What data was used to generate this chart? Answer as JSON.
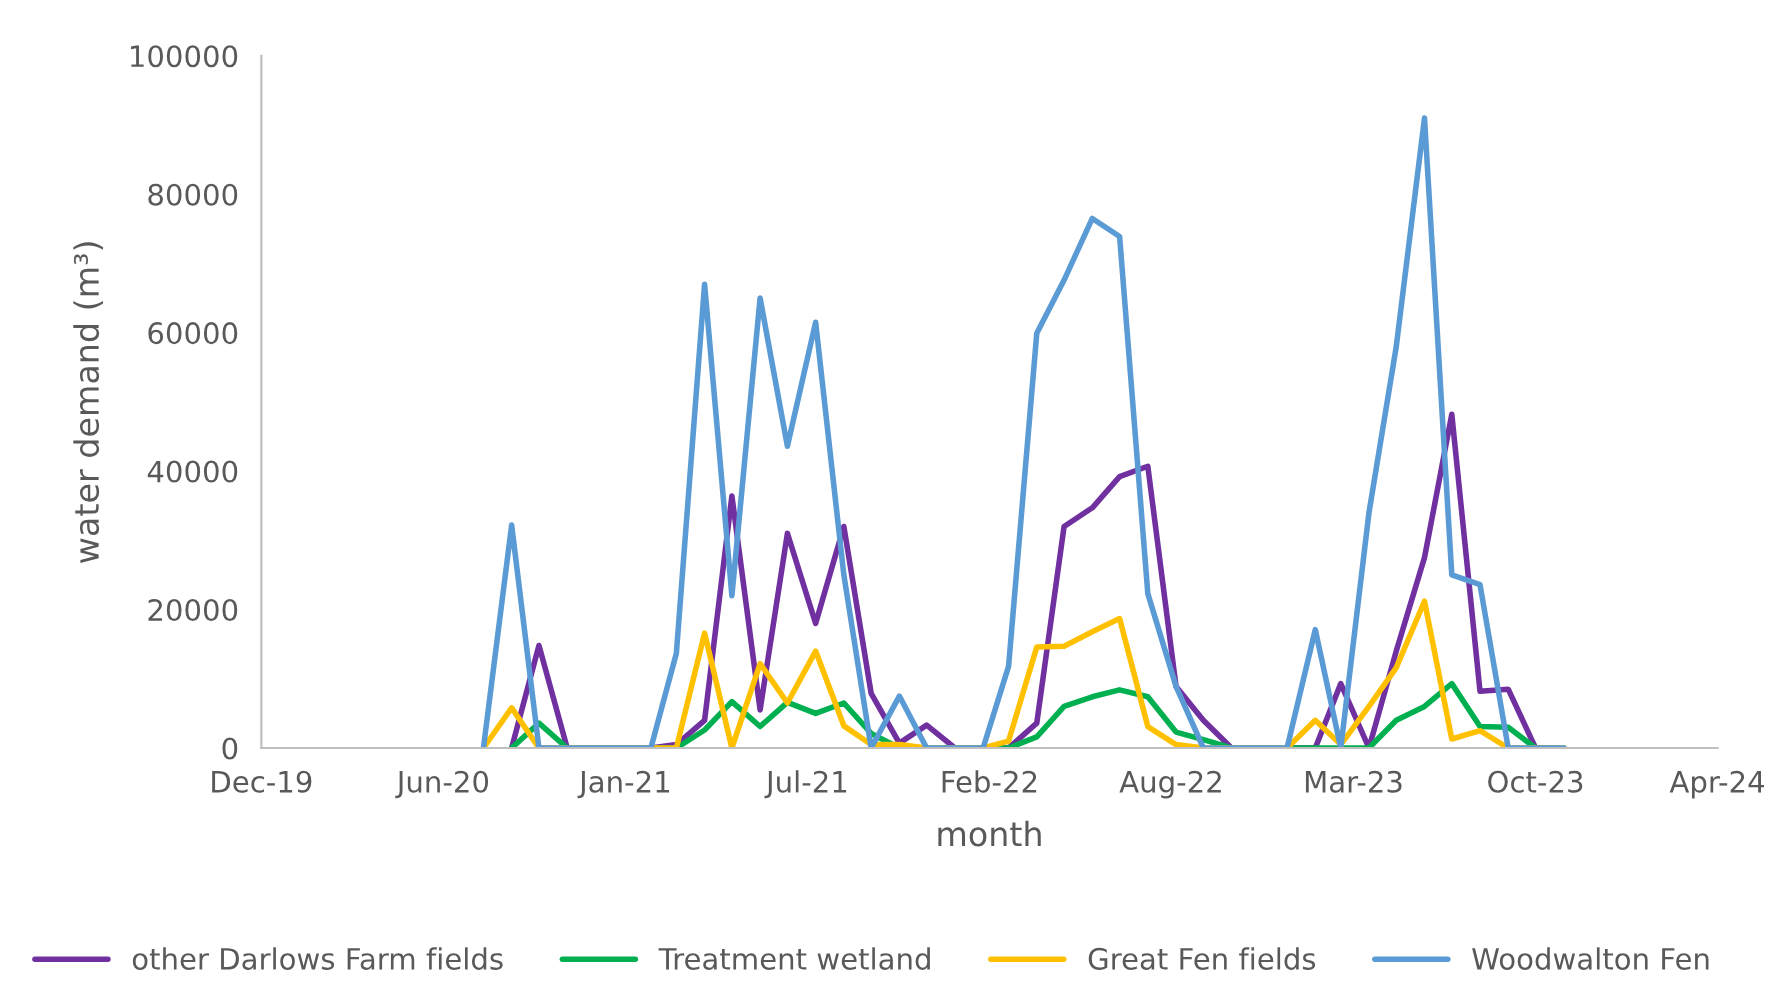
{
  "chart_data": {
    "type": "line",
    "xlabel": "month",
    "ylabel": "water demand (m³)",
    "x": [
      "2020-08",
      "2020-09",
      "2020-10",
      "2020-11",
      "2020-12",
      "2021-01",
      "2021-02",
      "2021-03",
      "2021-04",
      "2021-05",
      "2021-06",
      "2021-07",
      "2021-08",
      "2021-09",
      "2021-10",
      "2021-11",
      "2021-12",
      "2022-01",
      "2022-02",
      "2022-03",
      "2022-04",
      "2022-05",
      "2022-06",
      "2022-07",
      "2022-08",
      "2022-09",
      "2022-10",
      "2022-11",
      "2022-12",
      "2023-01",
      "2023-02",
      "2023-03",
      "2023-04",
      "2023-05",
      "2023-06",
      "2023-07",
      "2023-08",
      "2023-09",
      "2023-10",
      "2023-11"
    ],
    "series": [
      {
        "name": "other Darlows Farm fields",
        "color": "#7030a0",
        "values": [
          null,
          0,
          14800,
          0,
          0,
          0,
          0,
          500,
          4000,
          36400,
          5500,
          31000,
          18000,
          32000,
          7900,
          700,
          3300,
          0,
          0,
          0,
          3600,
          32000,
          34700,
          39200,
          40700,
          8900,
          4000,
          0,
          0,
          0,
          0,
          9300,
          0,
          14000,
          27500,
          48200,
          8200,
          8500,
          0,
          0
        ]
      },
      {
        "name": "Treatment wetland",
        "color": "#00b050",
        "values": [
          null,
          0,
          3600,
          0,
          0,
          0,
          0,
          0,
          2600,
          6700,
          3100,
          6600,
          5000,
          6500,
          2100,
          0,
          0,
          0,
          0,
          0,
          1600,
          6000,
          7400,
          8400,
          7400,
          2300,
          1200,
          0,
          0,
          0,
          0,
          0,
          0,
          4000,
          6000,
          9300,
          3100,
          3000,
          0,
          0
        ]
      },
      {
        "name": "Great Fen fields",
        "color": "#ffc000",
        "values": [
          0,
          5800,
          0,
          0,
          0,
          0,
          0,
          0,
          16600,
          0,
          12200,
          6500,
          14000,
          3200,
          500,
          500,
          0,
          0,
          0,
          1000,
          14600,
          14700,
          16800,
          18700,
          3100,
          500,
          0,
          0,
          0,
          0,
          4000,
          500,
          6000,
          11600,
          21200,
          1300,
          2500,
          0,
          0,
          0
        ]
      },
      {
        "name": "Woodwalton Fen",
        "color": "#5b9bd5",
        "values": [
          0,
          32200,
          0,
          0,
          0,
          0,
          0,
          13700,
          67000,
          22000,
          65000,
          43600,
          61500,
          25000,
          0,
          7500,
          0,
          0,
          0,
          11800,
          59900,
          67600,
          76500,
          73900,
          22300,
          8900,
          0,
          0,
          0,
          0,
          17100,
          0,
          34000,
          58000,
          91000,
          25000,
          23600,
          0,
          0,
          0
        ]
      }
    ],
    "xlim": [
      "2019-12-01",
      "2024-04-18"
    ],
    "xticks": [
      {
        "value": "2019-12-01",
        "label": "Dec-19"
      },
      {
        "value": "2020-06-18",
        "label": "Jun-20"
      },
      {
        "value": "2021-01-04",
        "label": "Jan-21"
      },
      {
        "value": "2021-07-23",
        "label": "Jul-21"
      },
      {
        "value": "2022-02-08",
        "label": "Feb-22"
      },
      {
        "value": "2022-08-27",
        "label": "Aug-22"
      },
      {
        "value": "2023-03-15",
        "label": "Mar-23"
      },
      {
        "value": "2023-10-01",
        "label": "Oct-23"
      },
      {
        "value": "2024-04-18",
        "label": "Apr-24"
      }
    ],
    "ylim": [
      0,
      100000
    ],
    "yticks": [
      0,
      20000,
      40000,
      60000,
      80000,
      100000
    ],
    "grid": false,
    "legend": "bottom",
    "marker": "none",
    "line_style": "solid"
  }
}
